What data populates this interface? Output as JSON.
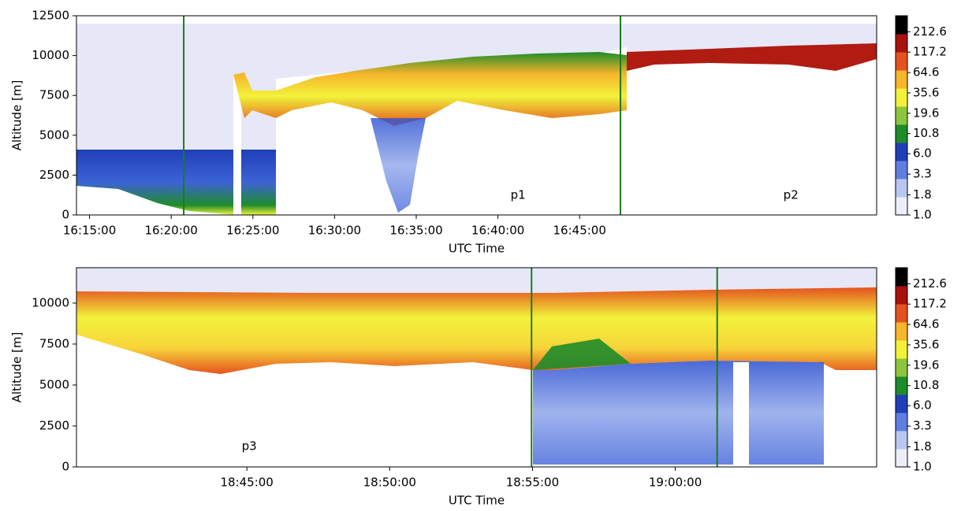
{
  "chart_data": [
    {
      "type": "heatmap",
      "x_label": "UTC Time",
      "y_label": "Altitude [m]",
      "xlim": [
        58452,
        61391
      ],
      "xticks": [
        {
          "value": 58500,
          "label": "16:15:00"
        },
        {
          "value": 58800,
          "label": "16:20:00"
        },
        {
          "value": 59100,
          "label": "16:25:00"
        },
        {
          "value": 59400,
          "label": "16:30:00"
        },
        {
          "value": 59700,
          "label": "16:35:00"
        },
        {
          "value": 60000,
          "label": "16:40:00"
        },
        {
          "value": 60300,
          "label": "16:45:00"
        }
      ],
      "ylim": [
        0,
        12500
      ],
      "yticks": [
        0,
        2500,
        5000,
        7500,
        10000,
        12500
      ],
      "vlines": [
        58846,
        60450
      ],
      "vline_color": "#1e7a1e",
      "annotations": [
        {
          "text": "p1",
          "x": 60074,
          "y": 1235
        },
        {
          "text": "p2",
          "x": 61076,
          "y": 1235
        }
      ],
      "colorbar": {
        "log": true,
        "lim": [
          1,
          340
        ],
        "ticks": [
          {
            "value": 1,
            "label": "1.0"
          },
          1.8,
          3.3,
          {
            "value": 6,
            "label": "6.0"
          },
          10.8,
          19.6,
          35.6,
          64.6,
          117.2,
          212.6
        ],
        "colors": [
          "#eceefa",
          "#b9c6f0",
          "#5f7fe0",
          "#1f3fb8",
          "#1e8c2a",
          "#8cc63c",
          "#f2f23a",
          "#f7b52c",
          "#e5521f",
          "#a8120c",
          "#000000"
        ]
      }
    },
    {
      "type": "heatmap",
      "x_label": "UTC Time",
      "y_label": "Altitude [m]",
      "xlim": [
        67142,
        68823
      ],
      "xticks": [
        {
          "value": 67500,
          "label": "18:45:00"
        },
        {
          "value": 67800,
          "label": "18:50:00"
        },
        {
          "value": 68100,
          "label": "18:55:00"
        },
        {
          "value": 68400,
          "label": "19:00:00"
        }
      ],
      "ylim": [
        0,
        12160
      ],
      "yticks": [
        0,
        2500,
        5000,
        7500,
        10000
      ],
      "vlines": [
        68098,
        68488
      ],
      "vline_color": "#1e7a1e",
      "annotations": [
        {
          "text": "p3",
          "x": 67505,
          "y": 1250
        }
      ],
      "colorbar": {
        "log": true,
        "lim": [
          1,
          340
        ],
        "ticks": [
          {
            "value": 1,
            "label": "1.0"
          },
          1.8,
          3.3,
          {
            "value": 6,
            "label": "6.0"
          },
          10.8,
          19.6,
          35.6,
          64.6,
          117.2,
          212.6
        ],
        "colors": [
          "#eceefa",
          "#b9c6f0",
          "#5f7fe0",
          "#1f3fb8",
          "#1e8c2a",
          "#8cc63c",
          "#f2f23a",
          "#f7b52c",
          "#e5521f",
          "#a8120c",
          "#000000"
        ]
      }
    }
  ]
}
